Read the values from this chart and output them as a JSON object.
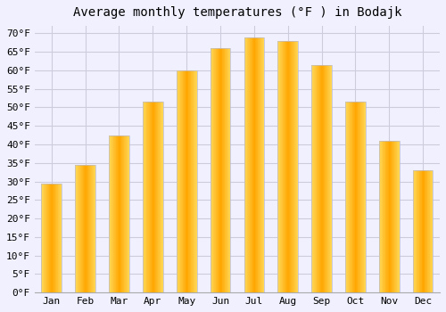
{
  "title": "Average monthly temperatures (°F ) in Bodajk",
  "months": [
    "Jan",
    "Feb",
    "Mar",
    "Apr",
    "May",
    "Jun",
    "Jul",
    "Aug",
    "Sep",
    "Oct",
    "Nov",
    "Dec"
  ],
  "values": [
    29.5,
    34.5,
    42.5,
    51.5,
    60.0,
    66.0,
    69.0,
    68.0,
    61.5,
    51.5,
    41.0,
    33.0
  ],
  "bar_color_center": "#FFA500",
  "bar_color_edge": "#FFD070",
  "background_color": "#F0F0FF",
  "grid_color": "#CCCCDD",
  "ylim": [
    0,
    72
  ],
  "yticks": [
    0,
    5,
    10,
    15,
    20,
    25,
    30,
    35,
    40,
    45,
    50,
    55,
    60,
    65,
    70
  ],
  "title_fontsize": 10,
  "tick_fontsize": 8,
  "font_family": "monospace",
  "bar_width": 0.6
}
